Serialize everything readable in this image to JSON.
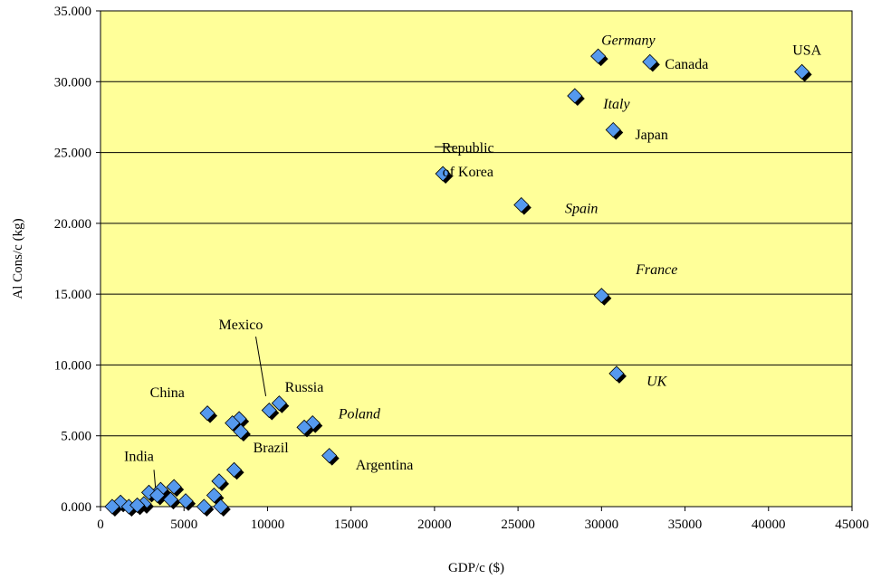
{
  "chart_data": {
    "type": "scatter",
    "xlabel": "GDP/c ($)",
    "ylabel": "Al Cons/c (kg)",
    "xlim": [
      0,
      45000
    ],
    "ylim": [
      0,
      35
    ],
    "x_ticks": [
      0,
      5000,
      10000,
      15000,
      20000,
      25000,
      30000,
      35000,
      40000,
      45000
    ],
    "x_tick_labels": [
      "0",
      "5000",
      "10000",
      "15000",
      "20000",
      "25000",
      "30000",
      "35000",
      "40000",
      "45000"
    ],
    "y_ticks": [
      0,
      5,
      10,
      15,
      20,
      25,
      30,
      35
    ],
    "y_tick_labels": [
      "0.000",
      "5.000",
      "10.000",
      "15.000",
      "20.000",
      "25.000",
      "30.000",
      "35.000"
    ],
    "grid": "horizontal",
    "colors": {
      "plot_background": "#FFFF99",
      "marker_fill": "#5599EE",
      "marker_shadow": "#000000",
      "grid": "#000000"
    },
    "points": [
      {
        "x": 42000,
        "y": 30.7
      },
      {
        "x": 29800,
        "y": 31.8
      },
      {
        "x": 32900,
        "y": 31.4
      },
      {
        "x": 28400,
        "y": 29.0
      },
      {
        "x": 30700,
        "y": 26.6
      },
      {
        "x": 20500,
        "y": 23.5
      },
      {
        "x": 25200,
        "y": 21.3
      },
      {
        "x": 30000,
        "y": 14.9
      },
      {
        "x": 30900,
        "y": 9.4
      },
      {
        "x": 10700,
        "y": 7.3
      },
      {
        "x": 10100,
        "y": 6.8
      },
      {
        "x": 6400,
        "y": 6.6
      },
      {
        "x": 8300,
        "y": 6.2
      },
      {
        "x": 7900,
        "y": 5.9
      },
      {
        "x": 8400,
        "y": 5.3
      },
      {
        "x": 12700,
        "y": 5.9
      },
      {
        "x": 12200,
        "y": 5.6
      },
      {
        "x": 13700,
        "y": 3.6
      },
      {
        "x": 8000,
        "y": 2.6
      },
      {
        "x": 7100,
        "y": 1.8
      },
      {
        "x": 2900,
        "y": 1.0
      },
      {
        "x": 3600,
        "y": 1.2
      },
      {
        "x": 4400,
        "y": 1.4
      },
      {
        "x": 3400,
        "y": 0.8
      },
      {
        "x": 4200,
        "y": 0.5
      },
      {
        "x": 5100,
        "y": 0.4
      },
      {
        "x": 6800,
        "y": 0.8
      },
      {
        "x": 1200,
        "y": 0.3
      },
      {
        "x": 2600,
        "y": 0.2
      },
      {
        "x": 700,
        "y": 0.0
      },
      {
        "x": 1700,
        "y": 0.0
      },
      {
        "x": 2200,
        "y": 0.1
      },
      {
        "x": 6200,
        "y": 0.0
      },
      {
        "x": 7200,
        "y": 0.0
      }
    ],
    "annotations": [
      {
        "text": "Germany",
        "italic": true,
        "anchor": [
          31600,
          33.0
        ]
      },
      {
        "text": "USA",
        "italic": false,
        "anchor": [
          42300,
          32.3
        ]
      },
      {
        "text": "Canada",
        "italic": false,
        "anchor": [
          35100,
          31.3
        ]
      },
      {
        "text": "Italy",
        "italic": true,
        "anchor": [
          30900,
          28.5
        ]
      },
      {
        "text": "Japan",
        "italic": false,
        "anchor": [
          33000,
          26.3
        ]
      },
      {
        "text": "Republic",
        "italic": false,
        "anchor": [
          22000,
          25.4
        ]
      },
      {
        "text": "of Korea",
        "italic": false,
        "anchor": [
          22000,
          23.7
        ]
      },
      {
        "text": "Spain",
        "italic": true,
        "anchor": [
          28800,
          21.1
        ]
      },
      {
        "text": "France",
        "italic": true,
        "anchor": [
          33300,
          16.8
        ]
      },
      {
        "text": "UK",
        "italic": true,
        "anchor": [
          33300,
          8.9
        ]
      },
      {
        "text": "Mexico",
        "italic": false,
        "anchor": [
          8400,
          12.9
        ]
      },
      {
        "text": "Russia",
        "italic": false,
        "anchor": [
          12200,
          8.5
        ]
      },
      {
        "text": "China",
        "italic": false,
        "anchor": [
          4000,
          8.1
        ]
      },
      {
        "text": "Poland",
        "italic": true,
        "anchor": [
          15500,
          6.6
        ]
      },
      {
        "text": "Brazil",
        "italic": false,
        "anchor": [
          10200,
          4.2
        ]
      },
      {
        "text": "Argentina",
        "italic": false,
        "anchor": [
          17000,
          3.0
        ]
      },
      {
        "text": "India",
        "italic": false,
        "anchor": [
          2300,
          3.6
        ]
      }
    ],
    "leader_lines": [
      {
        "from": [
          9300,
          12.0
        ],
        "to": [
          9900,
          7.8
        ]
      },
      {
        "from": [
          3200,
          2.6
        ],
        "to": [
          3300,
          1.2
        ]
      },
      {
        "from": [
          20000,
          25.4
        ],
        "to": [
          21200,
          25.4
        ]
      }
    ]
  }
}
